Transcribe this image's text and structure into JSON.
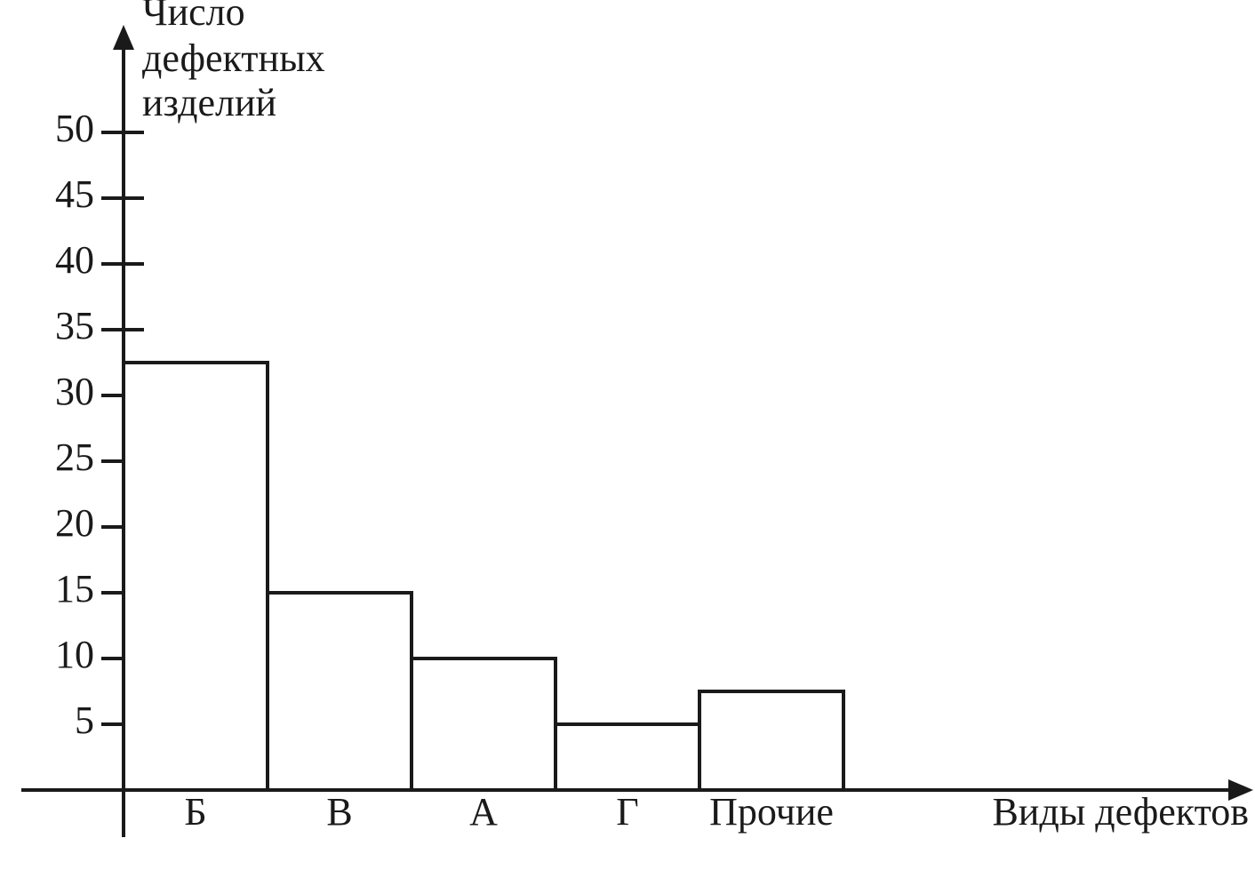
{
  "chart_data": {
    "type": "bar",
    "y_label": [
      "Число",
      "дефектных",
      "изделий"
    ],
    "x_label": "Виды дефектов",
    "categories": [
      "Б",
      "В",
      "А",
      "Г",
      "Прочие"
    ],
    "values": [
      32.5,
      15,
      10,
      5,
      7.5
    ],
    "color": "#ffffff",
    "ylim": [
      0,
      50
    ],
    "yticks": [
      5,
      10,
      15,
      20,
      25,
      30,
      35,
      40,
      45,
      50
    ],
    "grid": false
  }
}
